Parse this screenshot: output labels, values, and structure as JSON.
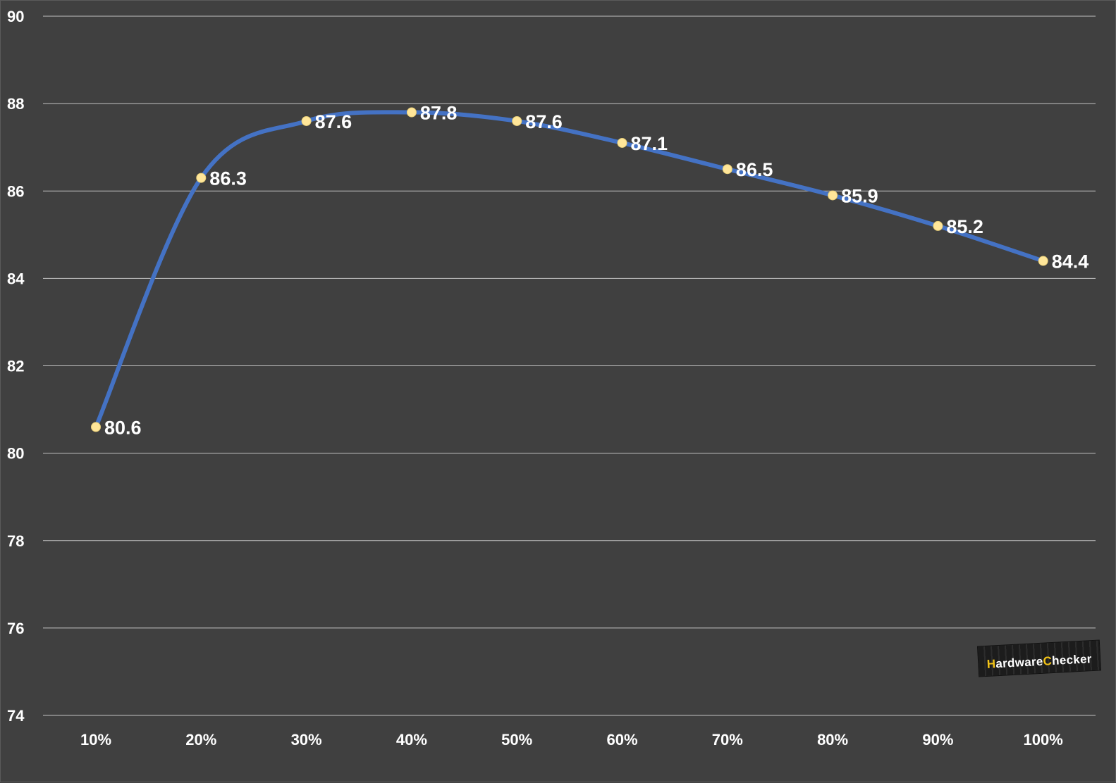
{
  "chart_data": {
    "type": "line",
    "categories": [
      "10%",
      "20%",
      "30%",
      "40%",
      "50%",
      "60%",
      "70%",
      "80%",
      "90%",
      "100%"
    ],
    "series": [
      {
        "values": [
          80.6,
          86.3,
          87.6,
          87.8,
          87.6,
          87.1,
          86.5,
          85.9,
          85.2,
          84.4
        ]
      }
    ],
    "data_labels": [
      "80.6",
      "86.3",
      "87.6",
      "87.8",
      "87.6",
      "87.1",
      "86.5",
      "85.9",
      "85.2",
      "84.4"
    ],
    "ylim": [
      74,
      90
    ],
    "yticks": [
      74,
      76,
      78,
      80,
      82,
      84,
      86,
      88,
      90
    ],
    "grid": true,
    "smooth": true,
    "colors": {
      "background": "#404040",
      "line": "#4472c4",
      "marker": "#ffe699",
      "text": "#ffffff",
      "grid": "#d9d9d9"
    },
    "title": "",
    "xlabel": "",
    "ylabel": ""
  },
  "watermark": {
    "brand_text": "HardwareChecker"
  }
}
